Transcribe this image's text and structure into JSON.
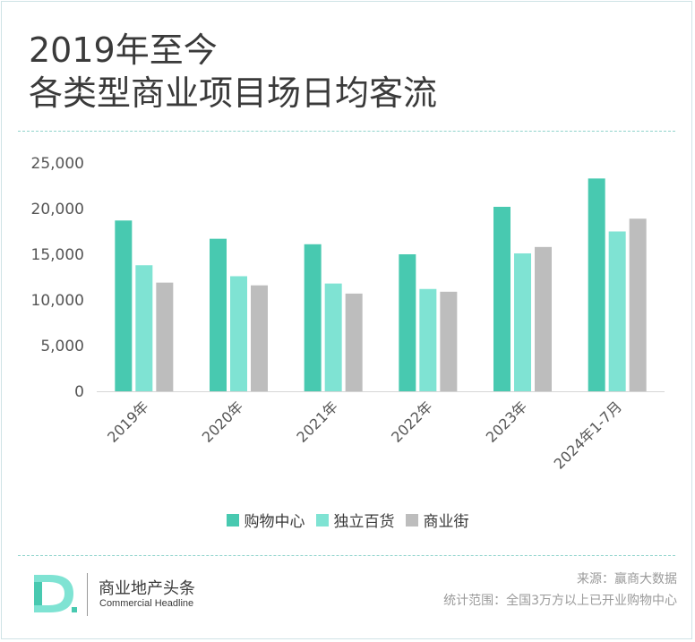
{
  "title_line1": "2019年至今",
  "title_line2": "各类型商业项目场日均客流",
  "chart_data": {
    "type": "bar",
    "categories": [
      "2019年",
      "2020年",
      "2021年",
      "2022年",
      "2023年",
      "2024年1-7月"
    ],
    "series": [
      {
        "name": "购物中心",
        "color": "#48c9b0",
        "values": [
          18700,
          16700,
          16100,
          15000,
          20200,
          23300
        ]
      },
      {
        "name": "独立百货",
        "color": "#7fe3d3",
        "values": [
          13800,
          12600,
          11800,
          11200,
          15100,
          17500
        ]
      },
      {
        "name": "商业街",
        "color": "#bdbdbd",
        "values": [
          11900,
          11600,
          10700,
          10900,
          15800,
          18900
        ]
      }
    ],
    "yticks": [
      "0",
      "5,000",
      "10,000",
      "15,000",
      "20,000",
      "25,000"
    ],
    "ylim": [
      0,
      25000
    ],
    "grid": false,
    "legend_position": "bottom"
  },
  "footer": {
    "brand_cn": "商业地产头条",
    "brand_en": "Commercial Headline",
    "source": "来源：赢商大数据",
    "scope": "统计范围：全国3万方以上已开业购物中心"
  }
}
